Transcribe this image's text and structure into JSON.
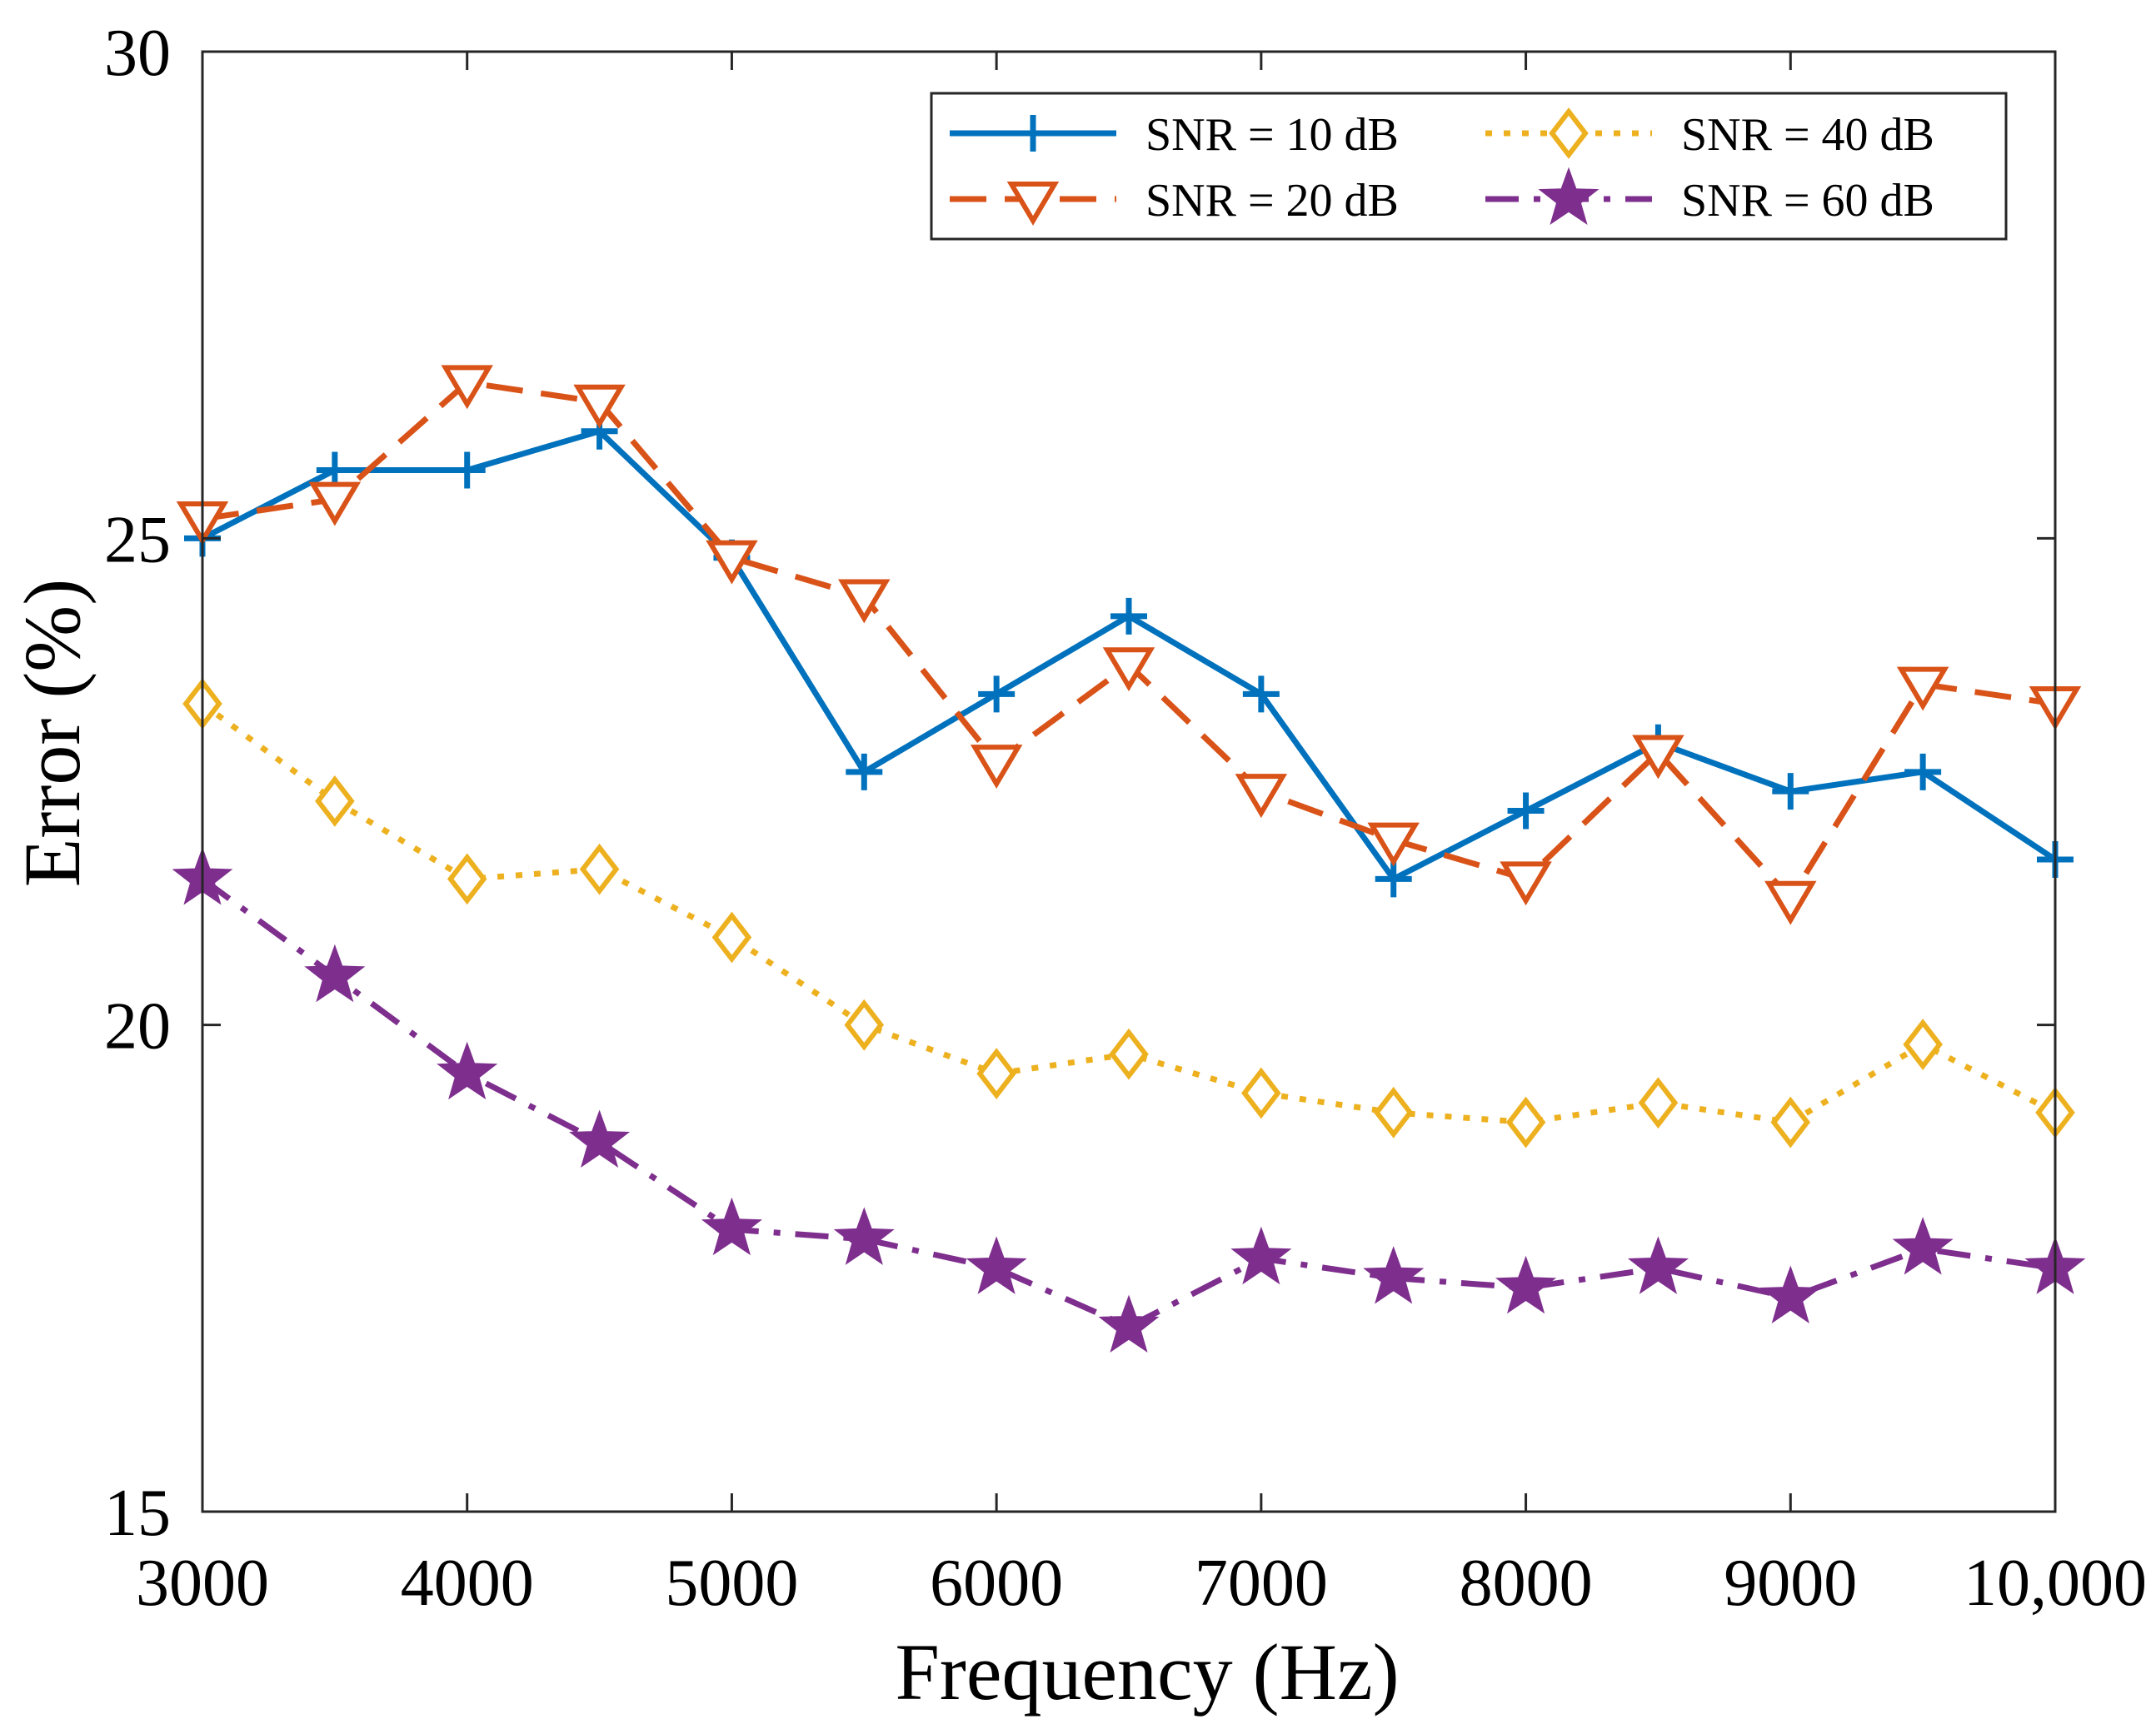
{
  "chart_data": {
    "type": "line",
    "title": "",
    "xlabel": "Frequency (Hz)",
    "ylabel": "Error (%)",
    "xlim": [
      3000,
      10000
    ],
    "ylim": [
      15,
      30
    ],
    "grid": false,
    "legend_position": "top-right",
    "x": [
      3000,
      3500,
      4000,
      4500,
      5000,
      5500,
      6000,
      6500,
      7000,
      7500,
      8000,
      8500,
      9000,
      9500,
      10000
    ],
    "x_tick_values": [
      3000,
      4000,
      5000,
      6000,
      7000,
      8000,
      9000,
      10000
    ],
    "x_tick_labels": [
      "3000",
      "4000",
      "5000",
      "6000",
      "7000",
      "8000",
      "9000",
      "10,000"
    ],
    "y_tick_values": [
      15,
      20,
      25,
      30
    ],
    "y_tick_labels": [
      "15",
      "20",
      "25",
      "30"
    ],
    "series": [
      {
        "name": "SNR = 10 dB",
        "color": "#0072BD",
        "line_style": "solid",
        "marker": "plus",
        "values": [
          25.0,
          25.7,
          25.7,
          26.1,
          24.8,
          22.6,
          23.4,
          24.2,
          23.4,
          21.5,
          22.2,
          22.9,
          22.4,
          22.6,
          21.7
        ]
      },
      {
        "name": "SNR = 20 dB",
        "color": "#D95319",
        "line_style": "dashed",
        "marker": "triangle-down",
        "values": [
          25.2,
          25.4,
          26.6,
          26.4,
          24.8,
          24.4,
          22.7,
          23.7,
          22.4,
          21.9,
          21.5,
          22.8,
          21.3,
          23.5,
          23.3
        ]
      },
      {
        "name": "SNR = 40 dB",
        "color": "#EDB120",
        "line_style": "dotted",
        "marker": "diamond",
        "values": [
          23.3,
          22.3,
          21.5,
          21.6,
          20.9,
          20.0,
          19.5,
          19.7,
          19.3,
          19.1,
          19.0,
          19.2,
          19.0,
          19.8,
          19.1
        ]
      },
      {
        "name": "SNR = 60 dB",
        "color": "#7E2F8E",
        "line_style": "dashdot",
        "marker": "star",
        "values": [
          21.5,
          20.5,
          19.5,
          18.8,
          17.9,
          17.8,
          17.5,
          16.9,
          17.6,
          17.4,
          17.3,
          17.5,
          17.2,
          17.7,
          17.5
        ]
      }
    ]
  }
}
